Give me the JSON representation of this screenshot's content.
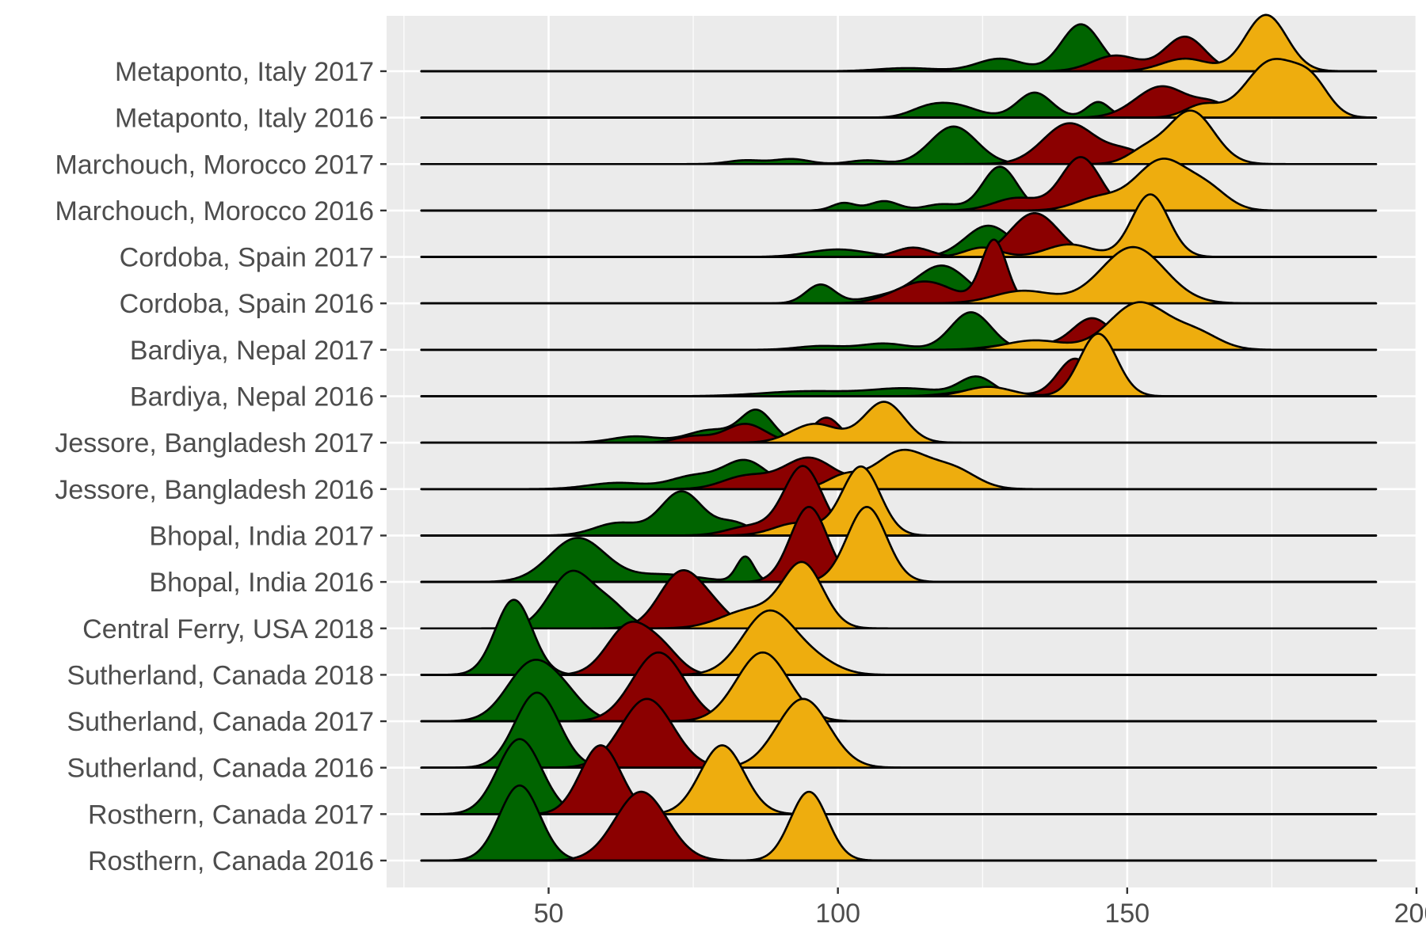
{
  "chart_data": {
    "type": "ridgeline",
    "categories": [
      "Rosthern, Canada 2016",
      "Rosthern, Canada 2017",
      "Sutherland, Canada 2016",
      "Sutherland, Canada 2017",
      "Sutherland, Canada 2018",
      "Central Ferry, USA 2018",
      "Bhopal, India 2016",
      "Bhopal, India 2017",
      "Jessore, Bangladesh 2016",
      "Jessore, Bangladesh 2017",
      "Bardiya, Nepal 2016",
      "Bardiya, Nepal 2017",
      "Cordoba, Spain 2016",
      "Cordoba, Spain 2017",
      "Marchouch, Morocco 2016",
      "Marchouch, Morocco 2017",
      "Metaponto, Italy 2016",
      "Metaponto, Italy 2017"
    ],
    "x_range": [
      28,
      193
    ],
    "xlim": [
      22,
      200
    ],
    "x_ticks": [
      50,
      100,
      150,
      200
    ],
    "x_tick_labels": [
      "50",
      "100",
      "150",
      "200"
    ],
    "grid": true,
    "legend": "none",
    "series_colors": [
      "#006400",
      "#8B0000",
      "#EEAD0E"
    ],
    "ridges": [
      [
        [
          [
            45,
            12,
            3.5
          ]
        ],
        [
          [
            66,
            11,
            4.5
          ]
        ],
        [
          [
            95,
            11,
            3.2
          ]
        ]
      ],
      [
        [
          [
            45,
            12,
            3.8
          ]
        ],
        [
          [
            59,
            11,
            3.5
          ]
        ],
        [
          [
            80,
            11,
            3.8
          ]
        ]
      ],
      [
        [
          [
            48,
            12,
            3.8
          ]
        ],
        [
          [
            67,
            11,
            4.5
          ]
        ],
        [
          [
            94,
            11,
            4.5
          ]
        ]
      ],
      [
        [
          [
            47,
            9,
            4.2
          ],
          [
            53,
            3,
            3.5
          ]
        ],
        [
          [
            69,
            11,
            4.5
          ]
        ],
        [
          [
            87,
            11,
            4.5
          ]
        ]
      ],
      [
        [
          [
            44,
            12,
            3.2
          ]
        ],
        [
          [
            64,
            8,
            3.8
          ],
          [
            70,
            3,
            3
          ]
        ],
        [
          [
            88,
            10,
            4.5
          ],
          [
            96,
            2,
            4
          ]
        ]
      ],
      [
        [
          [
            54,
            9,
            3.8
          ],
          [
            61,
            3,
            3
          ]
        ],
        [
          [
            73,
            9,
            3.8
          ],
          [
            79,
            2,
            3
          ]
        ],
        [
          [
            94,
            10,
            3.5
          ],
          [
            85,
            3,
            5
          ]
        ]
      ],
      [
        [
          [
            55,
            7,
            4.8
          ],
          [
            84,
            4,
            1.5
          ],
          [
            70,
            1.2,
            6
          ]
        ],
        [
          [
            95,
            12,
            3.2
          ]
        ],
        [
          [
            105,
            12,
            3.4
          ]
        ]
      ],
      [
        [
          [
            73,
            7,
            3.6
          ],
          [
            62,
            2,
            4
          ],
          [
            82,
            2,
            3
          ]
        ],
        [
          [
            94,
            11,
            3.3
          ],
          [
            85,
            1.5,
            4
          ]
        ],
        [
          [
            104,
            11,
            3.3
          ],
          [
            93,
            2,
            4
          ]
        ]
      ],
      [
        [
          [
            84,
            4.5,
            3.8
          ],
          [
            75,
            2,
            4
          ],
          [
            62,
            1,
            5
          ],
          [
            95,
            1.5,
            3
          ]
        ],
        [
          [
            95,
            5,
            4.5
          ],
          [
            84,
            2,
            4
          ],
          [
            106,
            2,
            3
          ]
        ],
        [
          [
            111,
            6,
            4.5
          ],
          [
            120,
            3,
            4
          ],
          [
            101,
            2,
            3
          ]
        ]
      ],
      [
        [
          [
            86,
            5,
            2.8
          ],
          [
            78,
            2,
            4
          ],
          [
            65,
            1,
            4
          ]
        ],
        [
          [
            98,
            4,
            2.5
          ],
          [
            84,
            3,
            3.5
          ],
          [
            75,
            1,
            3
          ]
        ],
        [
          [
            108,
            6.5,
            3.5
          ],
          [
            96,
            3,
            4
          ]
        ]
      ],
      [
        [
          [
            124,
            3,
            3
          ],
          [
            112,
            1.2,
            6
          ],
          [
            95,
            0.8,
            8
          ]
        ],
        [
          [
            141,
            6,
            3
          ],
          [
            125,
            1,
            5
          ]
        ],
        [
          [
            145,
            10,
            3.2
          ],
          [
            126,
            1.5,
            4
          ]
        ]
      ],
      [
        [
          [
            123,
            6,
            3.5
          ],
          [
            108,
            1,
            4
          ],
          [
            97,
            0.6,
            4
          ]
        ],
        [
          [
            144,
            5,
            3.5
          ],
          [
            132,
            1,
            5
          ]
        ],
        [
          [
            152,
            7.5,
            5
          ],
          [
            162,
            2.5,
            4
          ],
          [
            134,
            1.5,
            5
          ]
        ]
      ],
      [
        [
          [
            118,
            6,
            4.5
          ],
          [
            97,
            3,
            2.5
          ],
          [
            108,
            1,
            4
          ]
        ],
        [
          [
            127,
            10,
            2.2
          ],
          [
            115,
            3.5,
            5
          ]
        ],
        [
          [
            151,
            9,
            5.5
          ],
          [
            132,
            2,
            5
          ]
        ]
      ],
      [
        [
          [
            126,
            5,
            4
          ],
          [
            100,
            1.2,
            5
          ]
        ],
        [
          [
            134,
            7,
            4.2
          ],
          [
            113,
            1.5,
            3
          ]
        ],
        [
          [
            154,
            10,
            3.2
          ],
          [
            140,
            2,
            4
          ],
          [
            125,
            1.5,
            3
          ]
        ]
      ],
      [
        [
          [
            128,
            7,
            3
          ],
          [
            108,
            1.5,
            2.5
          ],
          [
            101,
            1.2,
            2
          ],
          [
            118,
            1,
            3
          ]
        ],
        [
          [
            142,
            8.5,
            3.4
          ],
          [
            131,
            2,
            4
          ]
        ],
        [
          [
            156,
            8,
            4.5
          ],
          [
            164,
            3,
            3.5
          ],
          [
            145,
            2,
            4
          ]
        ]
      ],
      [
        [
          [
            120,
            6,
            4
          ],
          [
            92,
            0.8,
            3
          ],
          [
            84,
            0.6,
            3
          ],
          [
            105,
            0.6,
            3
          ]
        ],
        [
          [
            140,
            6.5,
            4.5
          ],
          [
            150,
            2,
            3.5
          ]
        ],
        [
          [
            161,
            8.5,
            4
          ],
          [
            153,
            2,
            3
          ]
        ]
      ],
      [
        [
          [
            134,
            4,
            3
          ],
          [
            145,
            2.5,
            2
          ],
          [
            120,
            2,
            4
          ],
          [
            115,
            1,
            3
          ]
        ],
        [
          [
            156,
            5,
            4.5
          ],
          [
            165,
            2,
            3
          ]
        ],
        [
          [
            175,
            9,
            4.5
          ],
          [
            182,
            4.5,
            3
          ],
          [
            163,
            2,
            3
          ]
        ]
      ],
      [
        [
          [
            142,
            7.5,
            3.4
          ],
          [
            128,
            2,
            4
          ],
          [
            112,
            0.5,
            5
          ]
        ],
        [
          [
            160,
            5.5,
            3.5
          ],
          [
            148,
            2.5,
            4
          ]
        ],
        [
          [
            174,
            9,
            3.6
          ],
          [
            160,
            2,
            4
          ]
        ]
      ]
    ]
  }
}
